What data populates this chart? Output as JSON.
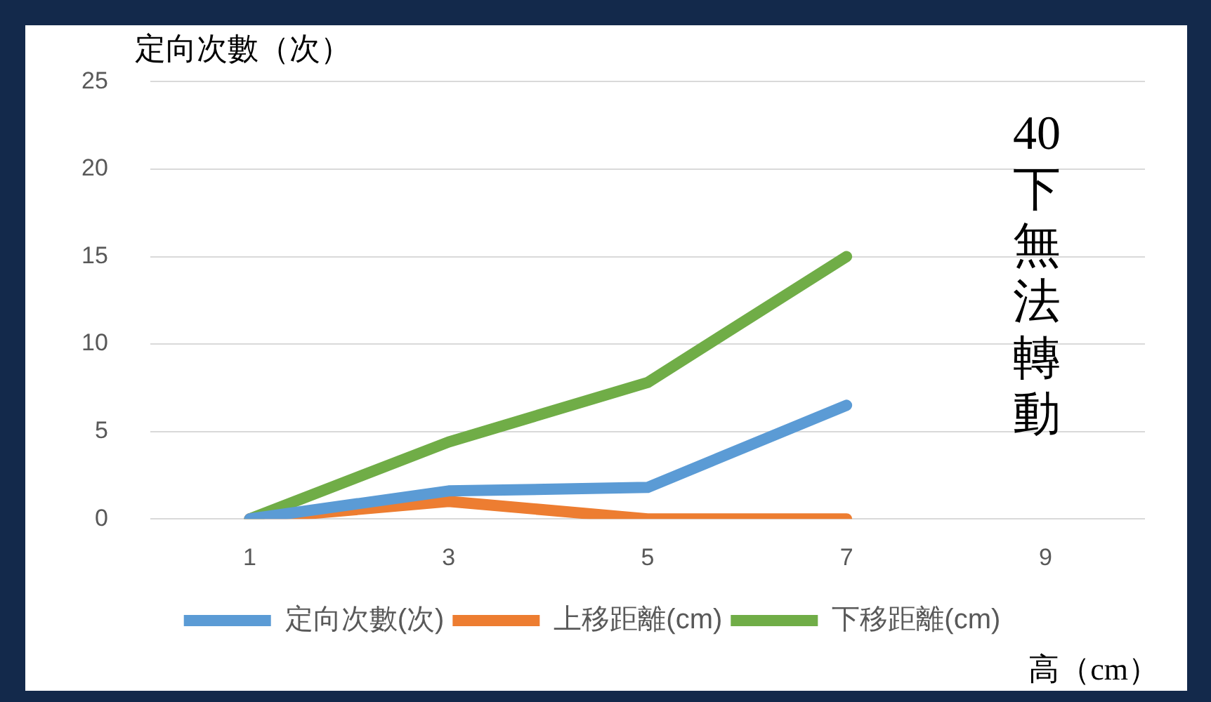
{
  "chart_data": {
    "type": "line",
    "ylabel": "定向次數（次）",
    "xlabel": "高（cm）",
    "categories": [
      "1",
      "3",
      "5",
      "7",
      "9"
    ],
    "series": [
      {
        "name": "定向次數(次)",
        "color": "#5b9bd5",
        "values": [
          0,
          1.6,
          1.8,
          6.5,
          null
        ]
      },
      {
        "name": "上移距離(cm)",
        "color": "#ed7d31",
        "values": [
          0,
          1,
          0,
          0,
          null
        ]
      },
      {
        "name": "下移距離(cm)",
        "color": "#70ad47",
        "values": [
          0,
          4.4,
          7.8,
          15,
          null
        ]
      }
    ],
    "ylim": [
      0,
      25
    ],
    "yticks": [
      0,
      5,
      10,
      15,
      20,
      25
    ],
    "grid": "y",
    "legend": "bottom",
    "marker": "none",
    "line_style": "solid",
    "annotations": [
      "40下無法轉動"
    ]
  }
}
